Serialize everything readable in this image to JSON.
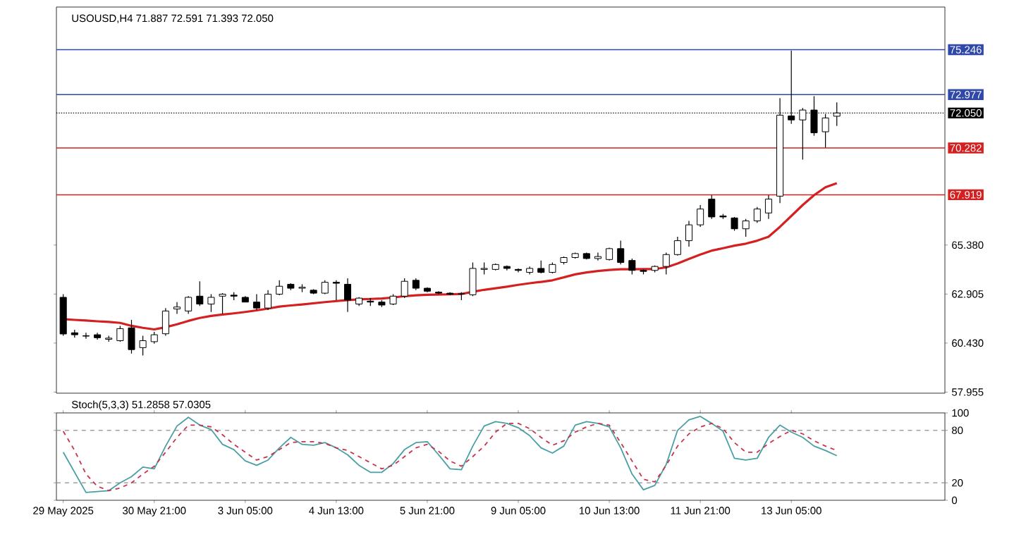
{
  "chart_data": [
    {
      "type": "candlestick",
      "title": "USOUSD,H4 71.887 72.591 71.393 72.050",
      "categories": [
        null,
        null,
        null,
        null,
        null,
        null,
        null,
        null,
        null,
        null,
        null,
        null,
        null,
        null,
        null,
        null,
        null,
        null,
        null,
        null,
        null,
        null,
        null,
        null,
        null,
        null,
        null,
        null,
        null,
        null,
        null,
        null,
        null,
        null,
        null,
        null,
        null,
        null,
        null,
        null,
        null,
        null,
        null,
        null,
        null,
        null,
        null,
        null,
        null,
        null,
        null,
        null,
        null,
        null,
        null,
        null,
        null,
        null,
        null,
        null,
        null,
        null,
        null,
        null,
        null,
        null,
        null,
        null,
        null
      ],
      "ohlc": [
        [
          62.74,
          62.9,
          60.8,
          60.89
        ],
        [
          60.95,
          61.1,
          60.7,
          60.85
        ],
        [
          60.8,
          60.95,
          60.65,
          60.78
        ],
        [
          60.85,
          60.95,
          60.6,
          60.7
        ],
        [
          60.62,
          60.8,
          60.5,
          60.68
        ],
        [
          60.55,
          61.3,
          60.5,
          61.16
        ],
        [
          61.2,
          61.6,
          59.9,
          60.1
        ],
        [
          60.2,
          60.8,
          59.8,
          60.55
        ],
        [
          60.5,
          61.0,
          60.4,
          60.85
        ],
        [
          60.9,
          62.2,
          60.8,
          62.05
        ],
        [
          62.15,
          62.5,
          61.9,
          62.25
        ],
        [
          62.05,
          62.8,
          61.9,
          62.74
        ],
        [
          62.8,
          63.55,
          62.3,
          62.4
        ],
        [
          62.4,
          62.9,
          62.0,
          62.74
        ],
        [
          62.8,
          62.95,
          61.9,
          62.9
        ],
        [
          62.85,
          63.0,
          62.6,
          62.8
        ],
        [
          62.74,
          62.8,
          62.5,
          62.5
        ],
        [
          62.5,
          62.9,
          62.1,
          62.2
        ],
        [
          62.2,
          63.1,
          62.1,
          62.9
        ],
        [
          62.9,
          63.6,
          62.85,
          63.3
        ],
        [
          63.4,
          63.45,
          63.1,
          63.2
        ],
        [
          63.2,
          63.4,
          63.0,
          63.25
        ],
        [
          63.1,
          63.15,
          62.9,
          62.95
        ],
        [
          62.95,
          63.6,
          62.9,
          63.5
        ],
        [
          63.5,
          63.6,
          62.6,
          63.45
        ],
        [
          63.4,
          63.7,
          62.0,
          62.6
        ],
        [
          62.4,
          62.75,
          62.3,
          62.7
        ],
        [
          62.55,
          62.7,
          62.3,
          62.5
        ],
        [
          62.5,
          62.6,
          62.25,
          62.35
        ],
        [
          62.4,
          62.9,
          62.35,
          62.8
        ],
        [
          62.8,
          63.7,
          62.7,
          63.55
        ],
        [
          63.6,
          63.7,
          63.1,
          63.2
        ],
        [
          63.2,
          63.25,
          63.0,
          63.05
        ],
        [
          63.0,
          63.05,
          62.9,
          62.95
        ],
        [
          62.95,
          63.0,
          62.85,
          62.9
        ],
        [
          62.9,
          63.0,
          62.6,
          62.92
        ],
        [
          62.87,
          64.5,
          62.8,
          64.2
        ],
        [
          64.15,
          64.5,
          63.9,
          64.2
        ],
        [
          64.15,
          64.45,
          64.1,
          64.4
        ],
        [
          64.3,
          64.35,
          64.1,
          64.2
        ],
        [
          64.15,
          64.2,
          64.0,
          64.1
        ],
        [
          64.0,
          64.3,
          63.9,
          64.2
        ],
        [
          64.2,
          64.6,
          63.95,
          64.0
        ],
        [
          64.0,
          64.5,
          63.95,
          64.4
        ],
        [
          64.5,
          64.8,
          64.4,
          64.75
        ],
        [
          64.75,
          65.0,
          64.7,
          64.95
        ],
        [
          64.95,
          65.0,
          64.65,
          64.7
        ],
        [
          64.7,
          65.0,
          64.6,
          64.8
        ],
        [
          64.65,
          65.25,
          64.6,
          65.2
        ],
        [
          65.2,
          65.6,
          64.4,
          64.5
        ],
        [
          64.6,
          64.7,
          63.9,
          64.1
        ],
        [
          64.1,
          64.15,
          63.9,
          64.05
        ],
        [
          64.1,
          64.35,
          64.0,
          64.3
        ],
        [
          64.3,
          65.0,
          63.9,
          64.9
        ],
        [
          64.9,
          65.8,
          64.85,
          65.6
        ],
        [
          65.6,
          66.6,
          65.3,
          66.4
        ],
        [
          66.4,
          67.4,
          66.3,
          67.2
        ],
        [
          67.7,
          67.9,
          66.7,
          66.8
        ],
        [
          66.85,
          66.95,
          66.7,
          66.8
        ],
        [
          66.75,
          66.8,
          66.1,
          66.2
        ],
        [
          66.2,
          66.7,
          65.8,
          66.6
        ],
        [
          66.6,
          67.3,
          66.5,
          67.2
        ],
        [
          67.0,
          67.9,
          66.7,
          67.7
        ],
        [
          67.85,
          72.8,
          67.5,
          71.94
        ],
        [
          71.9,
          75.2,
          71.5,
          71.7
        ],
        [
          71.7,
          72.3,
          69.7,
          72.2
        ],
        [
          72.2,
          72.9,
          70.9,
          71.05
        ],
        [
          71.1,
          72.0,
          70.3,
          71.8
        ],
        [
          71.887,
          72.591,
          71.393,
          72.05
        ]
      ],
      "series": [
        {
          "type": "line",
          "color": "#d42020",
          "values": [
            61.64,
            61.6,
            61.57,
            61.53,
            61.5,
            61.45,
            61.3,
            61.2,
            61.12,
            61.23,
            61.38,
            61.55,
            61.7,
            61.8,
            61.87,
            61.93,
            62.0,
            62.08,
            62.17,
            62.27,
            62.33,
            62.38,
            62.44,
            62.5,
            62.55,
            62.6,
            62.64,
            62.66,
            62.68,
            62.73,
            62.8,
            62.84,
            62.87,
            62.88,
            62.89,
            62.91,
            63.02,
            63.12,
            63.2,
            63.28,
            63.37,
            63.45,
            63.52,
            63.6,
            63.75,
            63.9,
            64.0,
            64.07,
            64.12,
            64.16,
            64.16,
            64.17,
            64.17,
            64.25,
            64.45,
            64.68,
            64.9,
            65.1,
            65.22,
            65.35,
            65.45,
            65.6,
            65.8,
            66.3,
            66.85,
            67.4,
            67.9,
            68.3,
            68.5
          ]
        }
      ],
      "ylim": [
        57.9,
        77.4
      ],
      "yticks": [
        57.955,
        {
          "value": 60.43,
          "label": "60.430"
        },
        62.905,
        {
          "value": 65.38,
          "label": "65.380"
        }
      ],
      "tick_labels": "y",
      "ref_lines": [
        {
          "axis": "y",
          "value": 75.246,
          "label": "75.246",
          "color": "#3048a8",
          "line_style": "solid"
        },
        {
          "axis": "y",
          "value": 72.977,
          "label": "72.977",
          "color": "#3048a8",
          "line_style": "solid"
        },
        {
          "axis": "y",
          "value": 72.05,
          "label": "72.050",
          "color": "#000000",
          "line_style": "dotted"
        },
        {
          "axis": "y",
          "value": 70.282,
          "label": "70.282",
          "color": "#d42020",
          "line_style": "solid"
        },
        {
          "axis": "y",
          "value": 67.919,
          "label": "67.919",
          "color": "#d42020",
          "line_style": "solid"
        }
      ]
    },
    {
      "type": "line",
      "title": "Stoch(5,3,3) 51.2858 57.0305",
      "categories": [
        "29 May 2025",
        null,
        null,
        null,
        null,
        null,
        null,
        null,
        "30 May 21:00",
        null,
        null,
        null,
        null,
        null,
        null,
        null,
        "3 Jun 05:00",
        null,
        null,
        null,
        null,
        null,
        null,
        null,
        "4 Jun 13:00",
        null,
        null,
        null,
        null,
        null,
        null,
        null,
        "5 Jun 21:00",
        null,
        null,
        null,
        null,
        null,
        null,
        null,
        "9 Jun 05:00",
        null,
        null,
        null,
        null,
        null,
        null,
        null,
        "10 Jun 13:00",
        null,
        null,
        null,
        null,
        null,
        null,
        null,
        "11 Jun 21:00",
        null,
        null,
        null,
        null,
        null,
        null,
        null,
        "13 Jun 05:00",
        null,
        null,
        null,
        null
      ],
      "series": [
        {
          "color": "#4a9fa5",
          "line_style": "solid",
          "values": [
            55,
            32,
            9,
            10,
            11,
            20,
            27,
            38,
            36,
            62,
            85,
            95,
            86,
            81,
            64,
            58,
            45,
            40,
            46,
            60,
            72,
            64,
            63,
            66,
            60,
            52,
            40,
            32,
            32,
            42,
            58,
            66,
            67,
            52,
            36,
            35,
            62,
            85,
            90,
            88,
            83,
            74,
            60,
            54,
            62,
            86,
            90,
            88,
            84,
            60,
            30,
            12,
            17,
            41,
            80,
            92,
            96,
            88,
            79,
            48,
            46,
            48,
            72,
            86,
            78,
            72,
            62,
            57,
            51
          ]
        },
        {
          "color": "#c8324a",
          "line_style": "dashed",
          "values": [
            79,
            57,
            30,
            16,
            11,
            14,
            20,
            30,
            39,
            55,
            72,
            86,
            86,
            84,
            75,
            64,
            55,
            46,
            50,
            58,
            66,
            67,
            67,
            65,
            60,
            57,
            50,
            43,
            36,
            40,
            50,
            60,
            64,
            56,
            45,
            39,
            50,
            62,
            78,
            88,
            88,
            82,
            72,
            63,
            68,
            78,
            84,
            88,
            86,
            66,
            45,
            24,
            21,
            40,
            62,
            76,
            84,
            88,
            82,
            66,
            55,
            55,
            65,
            73,
            80,
            76,
            68,
            62,
            57
          ]
        }
      ],
      "ylim": [
        0,
        100
      ],
      "yticks": [
        0,
        20,
        80,
        100
      ],
      "ref_lines": [
        {
          "axis": "y",
          "value": 20,
          "color": "#a0a0a0",
          "line_style": "dashed"
        },
        {
          "axis": "y",
          "value": 80,
          "color": "#a0a0a0",
          "line_style": "dashed"
        }
      ]
    }
  ]
}
